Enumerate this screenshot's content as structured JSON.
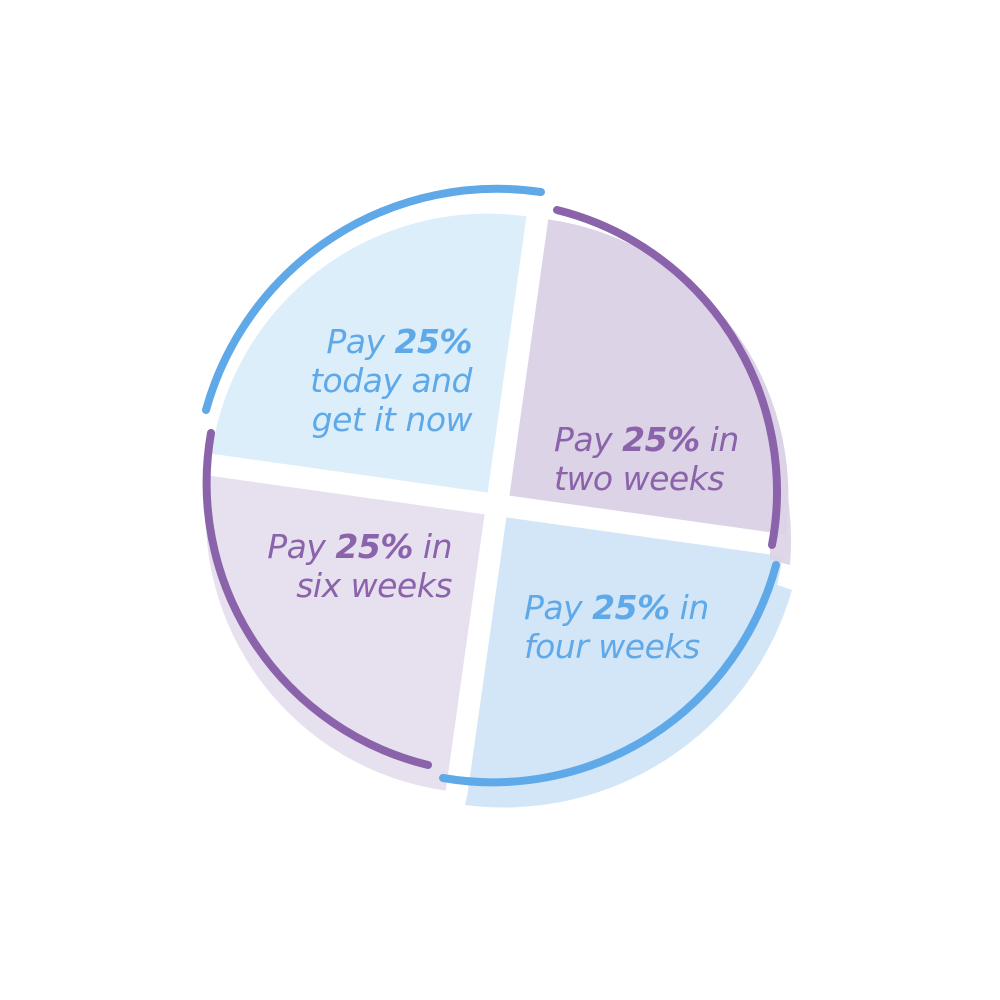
{
  "colors": {
    "blue": "#5fa9e8",
    "purple": "#8a63ab",
    "blue_fill_light": "#ddeefb",
    "blue_fill": "#d2e6f8",
    "purple_fill": "#dcd3e6",
    "purple_fill_light": "#e7e1ef"
  },
  "segments": [
    {
      "id": "today",
      "share_percent": 25,
      "prefix": "Pay ",
      "percent": "25%",
      "suffix": "",
      "line2": "today and",
      "line3": "get it now",
      "color": "blue"
    },
    {
      "id": "two-weeks",
      "share_percent": 25,
      "prefix": "Pay ",
      "percent": "25%",
      "suffix": " in",
      "line2": "two weeks",
      "color": "purple"
    },
    {
      "id": "four-weeks",
      "share_percent": 25,
      "prefix": "Pay ",
      "percent": "25%",
      "suffix": " in",
      "line2": "four weeks",
      "color": "blue"
    },
    {
      "id": "six-weeks",
      "share_percent": 25,
      "prefix": "Pay ",
      "percent": "25%",
      "suffix": " in",
      "line2": "six weeks",
      "color": "purple"
    }
  ]
}
